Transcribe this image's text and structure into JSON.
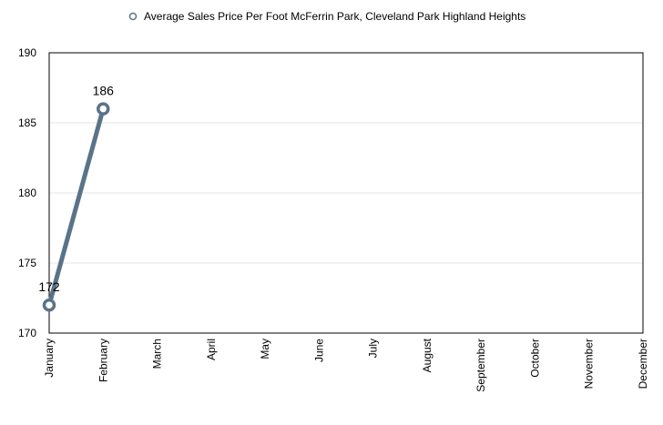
{
  "chart_data": {
    "type": "line",
    "title": "",
    "xlabel": "",
    "ylabel": "",
    "categories": [
      "January",
      "February",
      "March",
      "April",
      "May",
      "June",
      "July",
      "August",
      "September",
      "October",
      "November",
      "December"
    ],
    "series": [
      {
        "name": "Average Sales Price Per Foot McFerrin Park, Cleveland Park Highland Heights",
        "values": [
          172,
          186,
          null,
          null,
          null,
          null,
          null,
          null,
          null,
          null,
          null,
          null
        ],
        "color": "#5a7388"
      }
    ],
    "data_labels": [
      "172",
      "186"
    ],
    "ylim": [
      170,
      190
    ],
    "yticks": [
      170,
      175,
      180,
      185,
      190
    ],
    "grid": true,
    "legend_position": "top"
  }
}
